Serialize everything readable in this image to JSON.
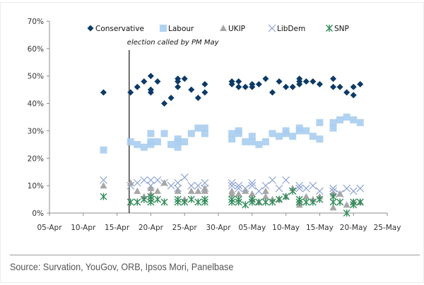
{
  "chart_data": {
    "type": "scatter",
    "title": "",
    "xlabel": "",
    "ylabel": "",
    "x_axis": {
      "type": "date",
      "origin": "05-Apr",
      "range_days": [
        0,
        50
      ],
      "tick_step_days": 5,
      "tick_labels": [
        "05-Apr",
        "10-Apr",
        "15-Apr",
        "20-Apr",
        "25-Apr",
        "30-Apr",
        "05-May",
        "10-May",
        "15-May",
        "20-May",
        "25-May"
      ]
    },
    "y_axis": {
      "ylim": [
        0,
        70
      ],
      "tick_step": 10,
      "tick_labels": [
        "0%",
        "10%",
        "20%",
        "30%",
        "40%",
        "50%",
        "60%",
        "70%"
      ]
    },
    "grid": false,
    "legend": {
      "placement": "top",
      "entries": [
        "Conservative",
        "Labour",
        "UKIP",
        "LibDem",
        "SNP"
      ]
    },
    "annotations": [
      {
        "text": "election called by PM May",
        "x_day": 11.8,
        "type": "vertical-line"
      }
    ],
    "series": [
      {
        "name": "Conservative",
        "marker": "diamond",
        "color": "#0d3a66",
        "points": [
          [
            8,
            44
          ],
          [
            12,
            44
          ],
          [
            13,
            46
          ],
          [
            14,
            48
          ],
          [
            15,
            50
          ],
          [
            15,
            45
          ],
          [
            15,
            44
          ],
          [
            16,
            48
          ],
          [
            17,
            40
          ],
          [
            18,
            42
          ],
          [
            19,
            48
          ],
          [
            19,
            49
          ],
          [
            19,
            46
          ],
          [
            20,
            49
          ],
          [
            21,
            45
          ],
          [
            22,
            42
          ],
          [
            23,
            47
          ],
          [
            23,
            44
          ],
          [
            27,
            48
          ],
          [
            27,
            47
          ],
          [
            28,
            48
          ],
          [
            28,
            46
          ],
          [
            29,
            46
          ],
          [
            30,
            47
          ],
          [
            30,
            46
          ],
          [
            31,
            47
          ],
          [
            32,
            49
          ],
          [
            33,
            44
          ],
          [
            34,
            48
          ],
          [
            35,
            46
          ],
          [
            36,
            46
          ],
          [
            37,
            48
          ],
          [
            37,
            49
          ],
          [
            37,
            47
          ],
          [
            38,
            48
          ],
          [
            39,
            48
          ],
          [
            40,
            47
          ],
          [
            42,
            49
          ],
          [
            42,
            46
          ],
          [
            43,
            46
          ],
          [
            44,
            44
          ],
          [
            45,
            46
          ],
          [
            45,
            43
          ],
          [
            46,
            47
          ]
        ]
      },
      {
        "name": "Labour",
        "marker": "square",
        "color": "#a9cdf0",
        "points": [
          [
            8,
            23
          ],
          [
            12,
            26
          ],
          [
            13,
            25
          ],
          [
            14,
            24
          ],
          [
            15,
            29
          ],
          [
            15,
            26
          ],
          [
            15,
            25
          ],
          [
            16,
            26
          ],
          [
            17,
            29
          ],
          [
            18,
            25
          ],
          [
            19,
            26
          ],
          [
            19,
            27
          ],
          [
            19,
            24
          ],
          [
            20,
            26
          ],
          [
            21,
            29
          ],
          [
            22,
            31
          ],
          [
            23,
            31
          ],
          [
            23,
            29
          ],
          [
            27,
            29
          ],
          [
            27,
            27
          ],
          [
            28,
            30
          ],
          [
            28,
            29
          ],
          [
            29,
            26
          ],
          [
            30,
            28
          ],
          [
            30,
            26
          ],
          [
            31,
            25
          ],
          [
            32,
            26
          ],
          [
            33,
            29
          ],
          [
            34,
            28
          ],
          [
            35,
            30
          ],
          [
            35,
            29
          ],
          [
            36,
            28
          ],
          [
            37,
            31
          ],
          [
            37,
            30
          ],
          [
            38,
            30
          ],
          [
            39,
            28
          ],
          [
            40,
            27
          ],
          [
            40,
            33
          ],
          [
            42,
            33
          ],
          [
            42,
            31
          ],
          [
            43,
            34
          ],
          [
            44,
            35
          ],
          [
            45,
            34
          ],
          [
            46,
            33
          ]
        ]
      },
      {
        "name": "UKIP",
        "marker": "triangle",
        "color": "#a6a6a6",
        "points": [
          [
            8,
            10
          ],
          [
            12,
            11
          ],
          [
            13,
            8
          ],
          [
            14,
            6
          ],
          [
            15,
            7
          ],
          [
            15,
            9
          ],
          [
            16,
            8
          ],
          [
            17,
            11
          ],
          [
            19,
            8
          ],
          [
            20,
            5
          ],
          [
            21,
            8
          ],
          [
            22,
            8
          ],
          [
            23,
            9
          ],
          [
            23,
            8
          ],
          [
            27,
            8
          ],
          [
            27,
            7
          ],
          [
            28,
            7
          ],
          [
            29,
            8
          ],
          [
            30,
            7
          ],
          [
            30,
            5
          ],
          [
            31,
            4
          ],
          [
            32,
            6
          ],
          [
            32,
            8
          ],
          [
            33,
            5
          ],
          [
            34,
            5
          ],
          [
            35,
            6
          ],
          [
            36,
            9
          ],
          [
            37,
            3
          ],
          [
            37,
            4
          ],
          [
            38,
            6
          ],
          [
            39,
            5
          ],
          [
            40,
            6
          ],
          [
            42,
            2
          ],
          [
            42,
            7
          ],
          [
            43,
            7
          ],
          [
            44,
            3
          ],
          [
            45,
            4
          ],
          [
            46,
            4
          ]
        ]
      },
      {
        "name": "LibDem",
        "marker": "x",
        "color": "#8ea4d2",
        "points": [
          [
            8,
            12
          ],
          [
            12,
            10
          ],
          [
            13,
            11
          ],
          [
            14,
            12
          ],
          [
            15,
            12
          ],
          [
            15,
            10
          ],
          [
            16,
            12
          ],
          [
            17,
            11
          ],
          [
            18,
            10
          ],
          [
            19,
            9
          ],
          [
            19,
            11
          ],
          [
            20,
            13
          ],
          [
            21,
            10
          ],
          [
            22,
            10
          ],
          [
            23,
            11
          ],
          [
            23,
            9
          ],
          [
            27,
            11
          ],
          [
            27,
            10
          ],
          [
            28,
            10
          ],
          [
            28,
            9
          ],
          [
            29,
            9
          ],
          [
            30,
            10
          ],
          [
            30,
            11
          ],
          [
            31,
            8
          ],
          [
            32,
            10
          ],
          [
            33,
            12
          ],
          [
            34,
            9
          ],
          [
            35,
            12
          ],
          [
            36,
            8
          ],
          [
            37,
            10
          ],
          [
            37,
            9
          ],
          [
            38,
            9
          ],
          [
            39,
            10
          ],
          [
            40,
            8
          ],
          [
            42,
            8
          ],
          [
            42,
            9
          ],
          [
            43,
            7
          ],
          [
            44,
            9
          ],
          [
            45,
            8
          ],
          [
            46,
            9
          ]
        ]
      },
      {
        "name": "SNP",
        "marker": "asterisk",
        "color": "#2e8b57",
        "points": [
          [
            8,
            6
          ],
          [
            12,
            4
          ],
          [
            13,
            4
          ],
          [
            14,
            5
          ],
          [
            15,
            4
          ],
          [
            15,
            6
          ],
          [
            15,
            5
          ],
          [
            16,
            5
          ],
          [
            17,
            4
          ],
          [
            19,
            5
          ],
          [
            19,
            4
          ],
          [
            20,
            4
          ],
          [
            21,
            5
          ],
          [
            22,
            4
          ],
          [
            23,
            5
          ],
          [
            23,
            4
          ],
          [
            27,
            4
          ],
          [
            27,
            5
          ],
          [
            28,
            4
          ],
          [
            28,
            5
          ],
          [
            29,
            3
          ],
          [
            30,
            4
          ],
          [
            30,
            5
          ],
          [
            31,
            4
          ],
          [
            32,
            4
          ],
          [
            33,
            4
          ],
          [
            34,
            5
          ],
          [
            35,
            6
          ],
          [
            36,
            8
          ],
          [
            37,
            5
          ],
          [
            37,
            4
          ],
          [
            38,
            4
          ],
          [
            39,
            4
          ],
          [
            40,
            5
          ],
          [
            42,
            6
          ],
          [
            42,
            4
          ],
          [
            43,
            4
          ],
          [
            44,
            0
          ],
          [
            45,
            4
          ],
          [
            45,
            3
          ],
          [
            46,
            4
          ]
        ]
      }
    ]
  },
  "footer": {
    "source": "Source: Survation, YouGov, ORB, Ipsos Mori, Panelbase"
  }
}
